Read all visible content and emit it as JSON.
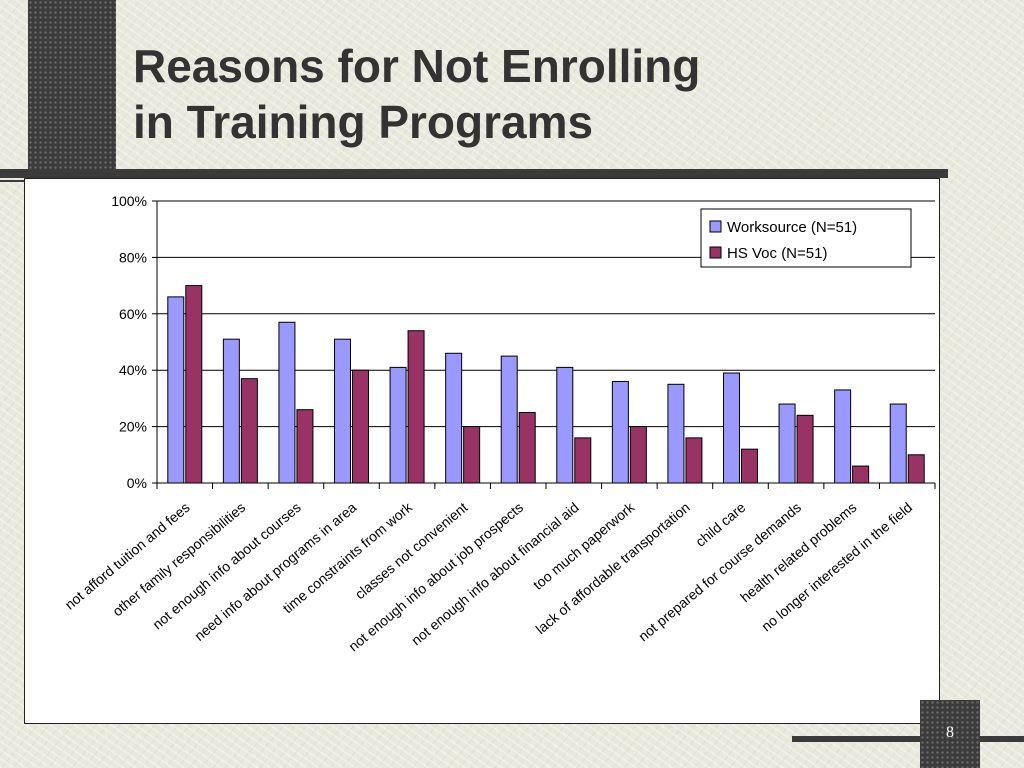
{
  "slide": {
    "title_line1": "Reasons for Not Enrolling",
    "title_line2": "in Training Programs",
    "page_number": "8"
  },
  "chart_data": {
    "type": "bar",
    "title": "",
    "xlabel": "",
    "ylabel": "",
    "ylim": [
      0,
      100
    ],
    "yticks": [
      "0%",
      "20%",
      "40%",
      "60%",
      "80%",
      "100%"
    ],
    "grid": true,
    "legend_position": "top-right",
    "categories": [
      "not afford tuition and fees",
      "other family responsibilities",
      "not enough info about courses",
      "need info about programs in area",
      "time constraints from work",
      "classes not convenient",
      "not enough info about job prospects",
      "not enough info about financial aid",
      "too much paperwork",
      "lack of affordable transportation",
      "child care",
      "not prepared for course demands",
      "health related problems",
      "no longer interested in the field"
    ],
    "series": [
      {
        "name": "Worksource (N=51)",
        "color": "#9999ff",
        "values": [
          66,
          51,
          57,
          51,
          41,
          46,
          45,
          41,
          36,
          35,
          39,
          28,
          33,
          28
        ]
      },
      {
        "name": "HS Voc (N=51)",
        "color": "#993366",
        "values": [
          70,
          37,
          26,
          40,
          54,
          20,
          25,
          16,
          20,
          16,
          12,
          24,
          6,
          10
        ]
      }
    ]
  }
}
